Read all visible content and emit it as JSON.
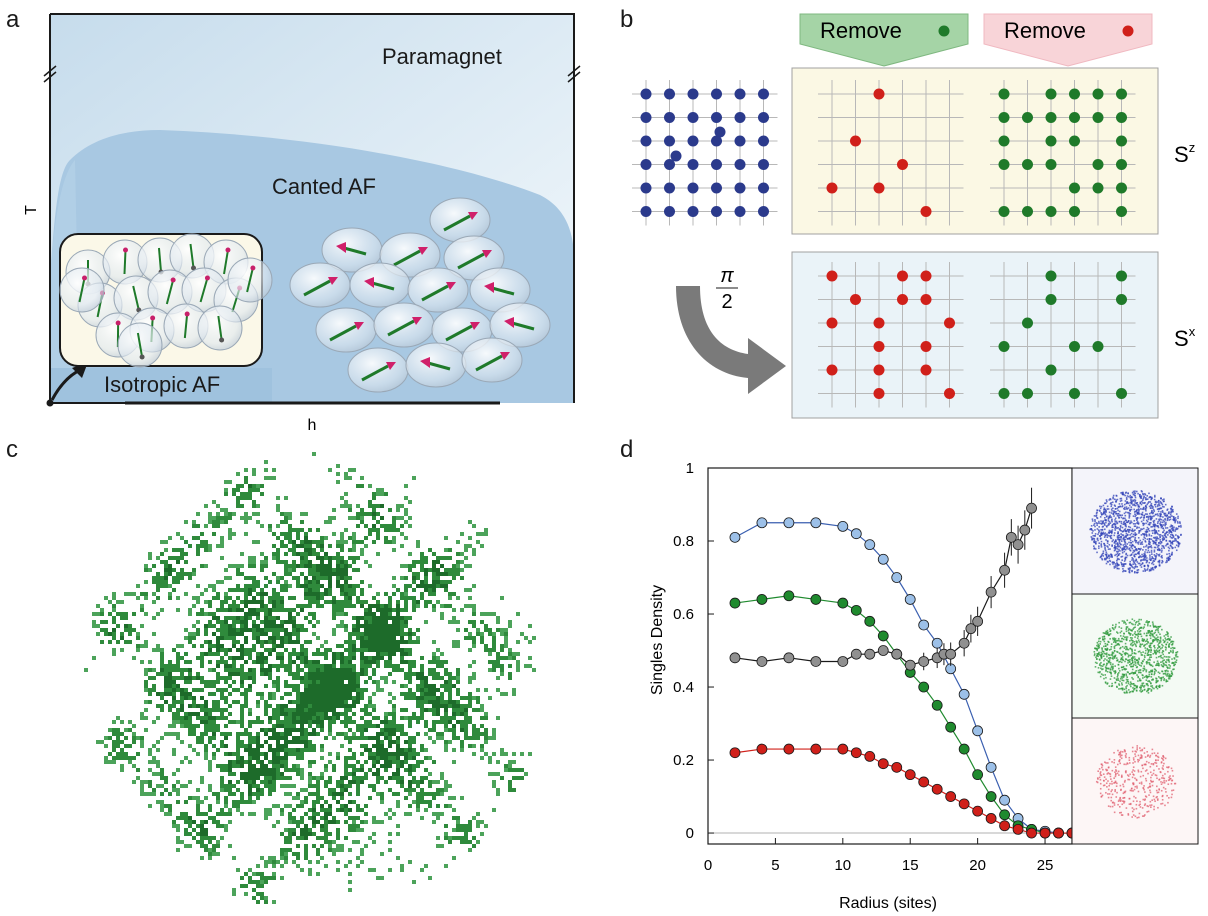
{
  "panel_labels": {
    "a": "a",
    "b": "b",
    "c": "c",
    "d": "d"
  },
  "panel_a": {
    "y_axis": "T",
    "x_axis": "h",
    "phase_paramagnet": "Paramagnet",
    "phase_canted": "Canted AF",
    "phase_isotropic": "Isotropic AF"
  },
  "panel_b": {
    "remove_green": "Remove",
    "remove_red": "Remove",
    "rotation": "π",
    "rotation_den": "2",
    "sz_label": "S",
    "sz_sup": "z",
    "sx_label": "S",
    "sx_sup": "x",
    "colors": {
      "blue": "#2b3a8c",
      "red": "#d0201a",
      "green": "#1f7a2a"
    }
  },
  "chart_data": {
    "type": "line",
    "xlabel": "Radius (sites)",
    "ylabel": "Singles Density",
    "xlim": [
      0,
      27
    ],
    "ylim": [
      -0.03,
      1.0
    ],
    "xticks": [
      "0",
      "5",
      "10",
      "15",
      "20",
      "25"
    ],
    "yticks": [
      "0",
      "0.2",
      "0.4",
      "0.6",
      "0.8",
      "1"
    ],
    "series": [
      {
        "color": "#9cc0e8",
        "x": [
          2,
          4,
          6,
          8,
          10,
          11,
          12,
          13,
          14,
          15,
          16,
          17,
          18,
          19,
          20,
          21,
          22,
          23,
          24,
          25,
          26,
          27
        ],
        "y": [
          0.81,
          0.85,
          0.85,
          0.85,
          0.84,
          0.82,
          0.79,
          0.75,
          0.7,
          0.64,
          0.57,
          0.52,
          0.45,
          0.38,
          0.28,
          0.18,
          0.09,
          0.04,
          0.01,
          0.005,
          0,
          0
        ]
      },
      {
        "color": "#1f8a2e",
        "x": [
          2,
          4,
          6,
          8,
          10,
          11,
          12,
          13,
          14,
          15,
          16,
          17,
          18,
          19,
          20,
          21,
          22,
          23,
          24,
          25,
          26,
          27
        ],
        "y": [
          0.63,
          0.64,
          0.65,
          0.64,
          0.63,
          0.61,
          0.58,
          0.54,
          0.49,
          0.44,
          0.4,
          0.35,
          0.29,
          0.23,
          0.16,
          0.1,
          0.05,
          0.02,
          0.01,
          0,
          0,
          0
        ]
      },
      {
        "color": "#909090",
        "x": [
          2,
          4,
          6,
          8,
          10,
          11,
          12,
          13,
          14,
          15,
          16,
          17,
          17.5,
          18,
          19,
          19.5,
          20,
          21,
          22,
          22.5,
          23,
          23.5,
          24
        ],
        "y": [
          0.48,
          0.47,
          0.48,
          0.47,
          0.47,
          0.49,
          0.49,
          0.5,
          0.49,
          0.46,
          0.47,
          0.48,
          0.49,
          0.49,
          0.52,
          0.56,
          0.58,
          0.66,
          0.72,
          0.81,
          0.79,
          0.83,
          0.89
        ]
      },
      {
        "color": "#d0201a",
        "x": [
          2,
          4,
          6,
          8,
          10,
          11,
          12,
          13,
          14,
          15,
          16,
          17,
          18,
          19,
          20,
          21,
          22,
          23,
          24,
          25,
          26,
          27
        ],
        "y": [
          0.22,
          0.23,
          0.23,
          0.23,
          0.23,
          0.22,
          0.21,
          0.19,
          0.18,
          0.16,
          0.14,
          0.12,
          0.1,
          0.08,
          0.06,
          0.04,
          0.02,
          0.01,
          0,
          0,
          0,
          0
        ]
      }
    ]
  }
}
